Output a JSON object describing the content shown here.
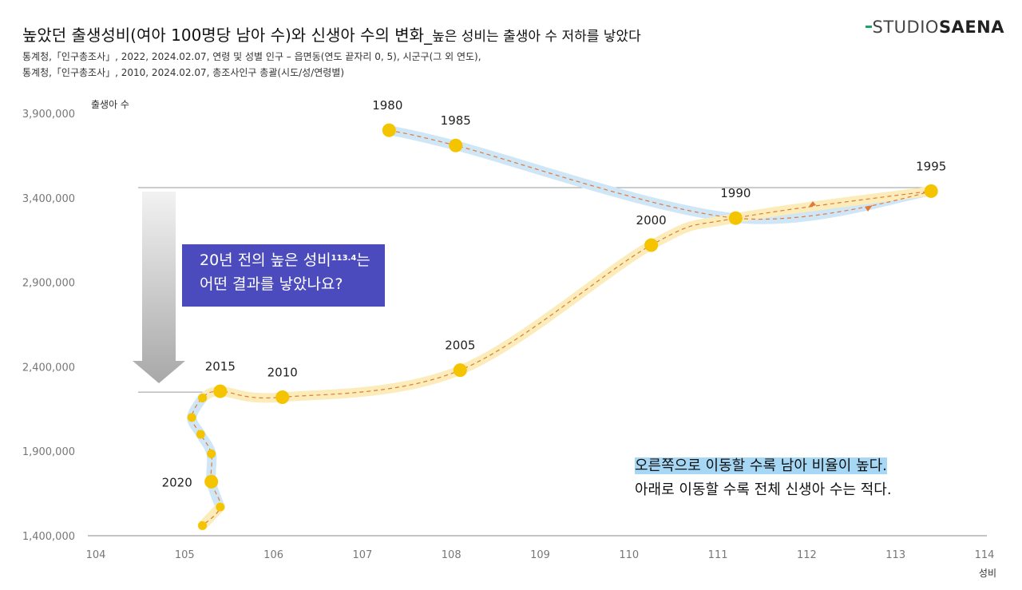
{
  "header": {
    "title_main": "높았던 출생성비(여아 100명당 남아 수)와 신생아 수의 변화_",
    "title_sub": "높은 성비는 출생아 수 저하를 낳았다",
    "source_line1": "통계청,「인구총조사」, 2022, 2024.02.07, 연령 및 성별 인구 – 읍면동(연도 끝자리 0, 5), 시군구(그 외 연도),",
    "source_line2": "통계청,「인구총조사」, 2010, 2024.02.07, 총조사인구 총괄(시도/성/연령별)"
  },
  "logo": {
    "part1": "STUDIO",
    "part2": "SAENA"
  },
  "callout": {
    "line1_pre": "20년 전의 높은 성비",
    "line1_sup": "113.4",
    "line1_post": "는",
    "line2": "어떤 결과를 낳았나요?"
  },
  "notes": {
    "line1": "오른쪽으로 이동할 수록 남아 비율이 높다.",
    "line2": "아래로 이동할 수록 전체 신생아 수는 적다."
  },
  "colors": {
    "marker": "#f5c400",
    "blue_band": "#cfe6f7",
    "yellow_band": "#fbecb9",
    "dash_line": "#e07a3a",
    "callout_bg": "#4b4bbd",
    "note_highlight": "#a6d8f5"
  },
  "chart_data": {
    "type": "line",
    "xlabel": "성비",
    "ylabel": "출생아 수",
    "xlim": [
      104,
      114
    ],
    "ylim": [
      1400000,
      3900000
    ],
    "x_ticks": [
      104,
      105,
      106,
      107,
      108,
      109,
      110,
      111,
      112,
      113,
      114
    ],
    "y_ticks": [
      1400000,
      1900000,
      2400000,
      2900000,
      3400000,
      3900000
    ],
    "y_tick_labels": [
      "1,400,000",
      "1,900,000",
      "2,400,000",
      "2,900,000",
      "3,400,000",
      "3,900,000"
    ],
    "points": [
      {
        "year": 1980,
        "x": 107.3,
        "y": 3800000,
        "label": "1980"
      },
      {
        "year": 1985,
        "x": 108.05,
        "y": 3710000,
        "label": "1985"
      },
      {
        "year": 1990,
        "x": 111.2,
        "y": 3280000,
        "label": "1990"
      },
      {
        "year": 1995,
        "x": 113.4,
        "y": 3440000,
        "label": "1995"
      },
      {
        "year": 2000,
        "x": 110.25,
        "y": 3120000,
        "label": "2000"
      },
      {
        "year": 2005,
        "x": 108.1,
        "y": 2380000,
        "label": "2005"
      },
      {
        "year": 2010,
        "x": 106.1,
        "y": 2220000,
        "label": "2010"
      },
      {
        "year": 2015,
        "x": 105.4,
        "y": 2255000,
        "label": "2015"
      },
      {
        "year": 2016,
        "x": 105.2,
        "y": 2215000,
        "label": ""
      },
      {
        "year": 2017,
        "x": 105.08,
        "y": 2100000,
        "label": ""
      },
      {
        "year": 2018,
        "x": 105.18,
        "y": 2000000,
        "label": ""
      },
      {
        "year": 2019,
        "x": 105.3,
        "y": 1885000,
        "label": ""
      },
      {
        "year": 2020,
        "x": 105.3,
        "y": 1720000,
        "label": "2020"
      },
      {
        "year": 2021,
        "x": 105.4,
        "y": 1570000,
        "label": ""
      },
      {
        "year": 2022,
        "x": 105.2,
        "y": 1460000,
        "label": ""
      }
    ],
    "reference_line_y": [
      3460000,
      2255000
    ]
  }
}
